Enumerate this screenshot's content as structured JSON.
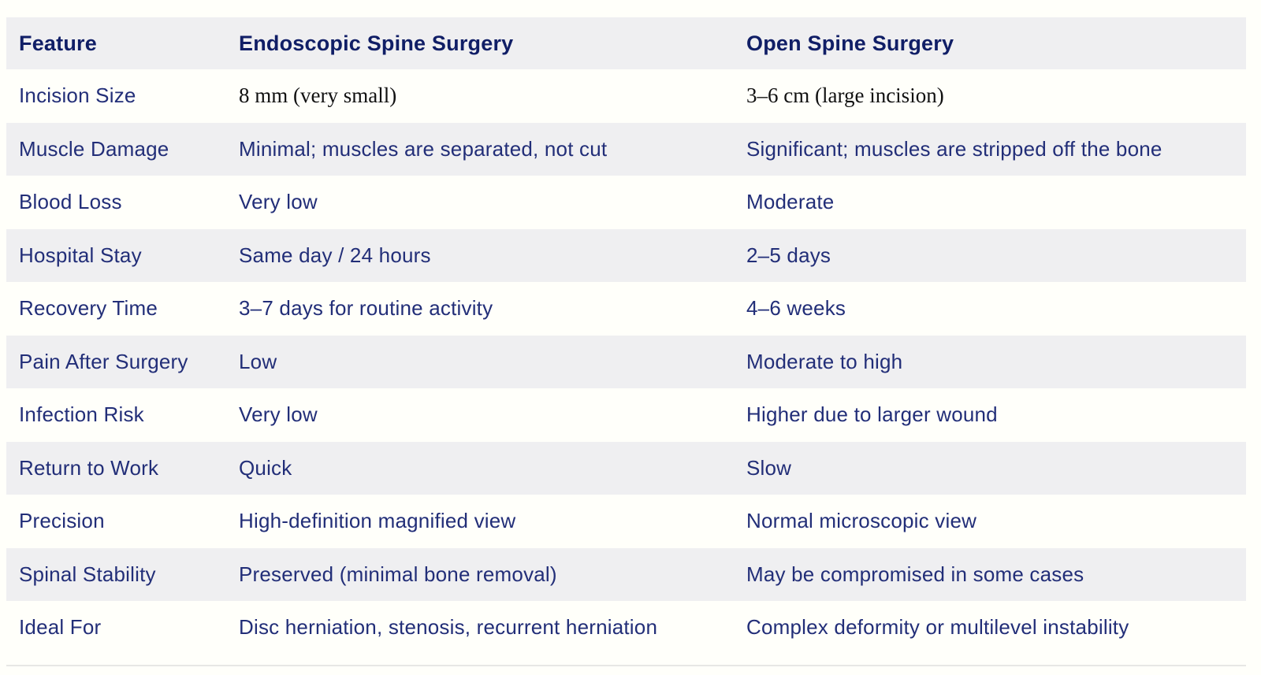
{
  "page": {
    "background_color": "#fffffa",
    "row_alt_color": "#efeff1",
    "header_text_color": "#101e66",
    "body_text_color": "#222e78",
    "serif_text_color": "#111111"
  },
  "table": {
    "header": {
      "feature": "Feature",
      "endoscopic": "Endoscopic Spine Surgery",
      "open": "Open Spine Surgery"
    },
    "rows": [
      {
        "feature": "Incision Size",
        "endoscopic": "8 mm (very small)",
        "open": "3–6 cm (large incision)"
      },
      {
        "feature": "Muscle Damage",
        "endoscopic": "Minimal; muscles are separated, not cut",
        "open": "Significant; muscles are stripped off the bone"
      },
      {
        "feature": "Blood Loss",
        "endoscopic": "Very low",
        "open": "Moderate"
      },
      {
        "feature": "Hospital Stay",
        "endoscopic": "Same day / 24 hours",
        "open": "2–5 days"
      },
      {
        "feature": "Recovery Time",
        "endoscopic": "3–7 days for routine activity",
        "open": "4–6 weeks"
      },
      {
        "feature": "Pain After Surgery",
        "endoscopic": "Low",
        "open": "Moderate to high"
      },
      {
        "feature": "Infection Risk",
        "endoscopic": "Very low",
        "open": "Higher due to larger wound"
      },
      {
        "feature": "Return to Work",
        "endoscopic": "Quick",
        "open": "Slow"
      },
      {
        "feature": "Precision",
        "endoscopic": "High-definition magnified view",
        "open": "Normal microscopic view"
      },
      {
        "feature": "Spinal Stability",
        "endoscopic": "Preserved (minimal bone removal)",
        "open": "May be compromised in some cases"
      },
      {
        "feature": "Ideal For",
        "endoscopic": "Disc herniation, stenosis, recurrent herniation",
        "open": "Complex deformity or multilevel instability"
      }
    ]
  }
}
